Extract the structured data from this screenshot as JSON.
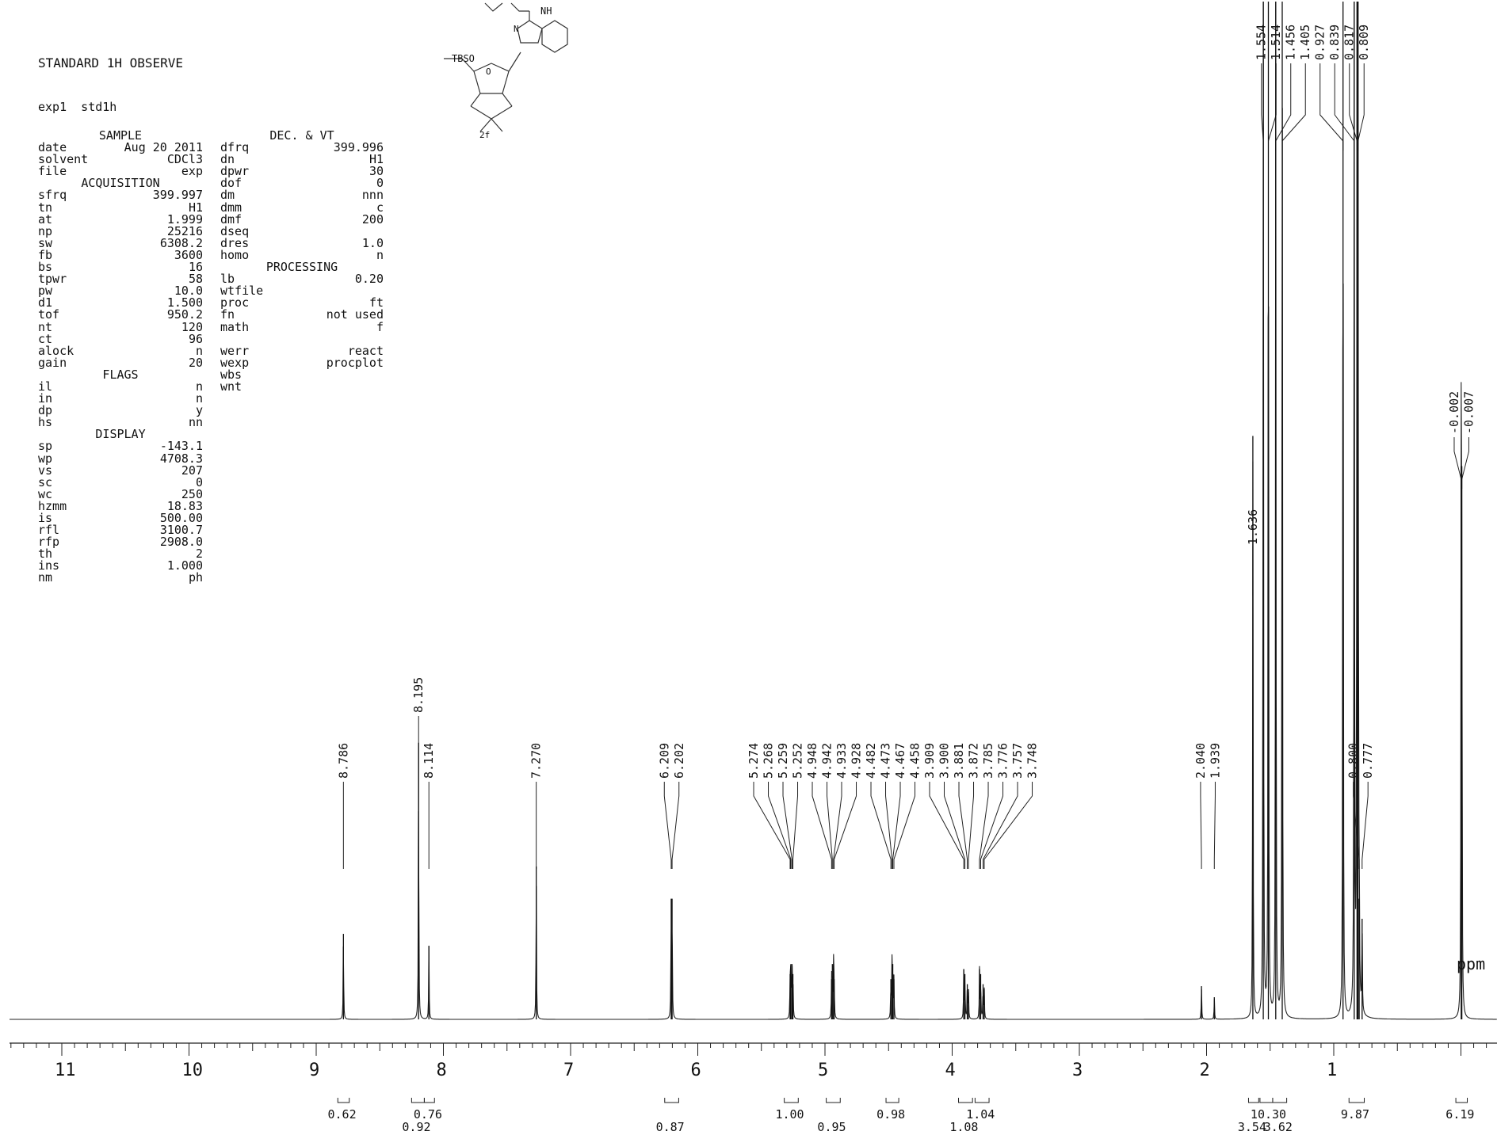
{
  "header": {
    "title": "STANDARD 1H OBSERVE",
    "exp": "exp1  std1h"
  },
  "params": {
    "col1": [
      {
        "type": "hdr",
        "text": "SAMPLE"
      },
      {
        "l": "date",
        "v": "Aug 20 2011"
      },
      {
        "l": "solvent",
        "v": "CDCl3"
      },
      {
        "l": "file",
        "v": "exp"
      },
      {
        "type": "hdr",
        "text": "ACQUISITION"
      },
      {
        "l": "sfrq",
        "v": "399.997"
      },
      {
        "l": "tn",
        "v": "H1"
      },
      {
        "l": "at",
        "v": "1.999"
      },
      {
        "l": "np",
        "v": "25216"
      },
      {
        "l": "sw",
        "v": "6308.2"
      },
      {
        "l": "fb",
        "v": "3600"
      },
      {
        "l": "bs",
        "v": "16"
      },
      {
        "l": "tpwr",
        "v": "58"
      },
      {
        "l": "pw",
        "v": "10.0"
      },
      {
        "l": "d1",
        "v": "1.500"
      },
      {
        "l": "tof",
        "v": "950.2"
      },
      {
        "l": "nt",
        "v": "120"
      },
      {
        "l": "ct",
        "v": "96"
      },
      {
        "l": "alock",
        "v": "n"
      },
      {
        "l": "gain",
        "v": "20"
      },
      {
        "type": "hdr",
        "text": "FLAGS"
      },
      {
        "l": "il",
        "v": "n"
      },
      {
        "l": "in",
        "v": "n"
      },
      {
        "l": "dp",
        "v": "y"
      },
      {
        "l": "hs",
        "v": "nn"
      },
      {
        "type": "hdr",
        "text": "DISPLAY"
      },
      {
        "l": "sp",
        "v": "-143.1"
      },
      {
        "l": "wp",
        "v": "4708.3"
      },
      {
        "l": "vs",
        "v": "207"
      },
      {
        "l": "sc",
        "v": "0"
      },
      {
        "l": "wc",
        "v": "250"
      },
      {
        "l": "hzmm",
        "v": "18.83"
      },
      {
        "l": "is",
        "v": "500.00"
      },
      {
        "l": "rfl",
        "v": "3100.7"
      },
      {
        "l": "rfp",
        "v": "2908.0"
      },
      {
        "l": "th",
        "v": "2"
      },
      {
        "l": "ins",
        "v": "1.000"
      },
      {
        "l": "nm",
        "v": "ph"
      }
    ],
    "col2": [
      {
        "type": "hdr",
        "text": "DEC. & VT"
      },
      {
        "l": "dfrq",
        "v": "399.996"
      },
      {
        "l": "dn",
        "v": "H1"
      },
      {
        "l": "dpwr",
        "v": "30"
      },
      {
        "l": "dof",
        "v": "0"
      },
      {
        "l": "dm",
        "v": "nnn"
      },
      {
        "l": "dmm",
        "v": "c"
      },
      {
        "l": "dmf",
        "v": "200"
      },
      {
        "l": "dseq",
        "v": ""
      },
      {
        "l": "dres",
        "v": "1.0"
      },
      {
        "l": "homo",
        "v": "n"
      },
      {
        "type": "hdr",
        "text": "PROCESSING"
      },
      {
        "l": "lb",
        "v": "0.20"
      },
      {
        "l": "wtfile",
        "v": ""
      },
      {
        "l": "proc",
        "v": "ft"
      },
      {
        "l": "fn",
        "v": "not used"
      },
      {
        "l": "math",
        "v": "f"
      },
      {
        "type": "blank"
      },
      {
        "l": "werr",
        "v": "react"
      },
      {
        "l": "wexp",
        "v": "procplot"
      },
      {
        "l": "wbs",
        "v": ""
      },
      {
        "l": "wnt",
        "v": ""
      }
    ]
  },
  "structure": {
    "label_tbs": "TBSO",
    "label_nh": "NH",
    "label_n": "N",
    "label_o": "O",
    "compound": "2f"
  },
  "chart_data": {
    "type": "line",
    "title": "",
    "xlabel": "ppm",
    "ylabel": "",
    "xlim": [
      11.4,
      -0.3
    ],
    "x_reversed": true,
    "xticks": [
      11,
      10,
      9,
      8,
      7,
      6,
      5,
      4,
      3,
      2,
      1
    ],
    "series": [
      {
        "peaks": [
          {
            "ppm": 8.786,
            "h": 0.085
          },
          {
            "ppm": 8.195,
            "h": 0.275
          },
          {
            "ppm": 8.114,
            "h": 0.073
          },
          {
            "ppm": 7.27,
            "h": 0.152
          },
          {
            "ppm": 6.209,
            "h": 0.12
          },
          {
            "ppm": 6.202,
            "h": 0.12
          },
          {
            "ppm": 5.274,
            "h": 0.045
          },
          {
            "ppm": 5.268,
            "h": 0.055
          },
          {
            "ppm": 5.259,
            "h": 0.055
          },
          {
            "ppm": 5.252,
            "h": 0.045
          },
          {
            "ppm": 4.948,
            "h": 0.04
          },
          {
            "ppm": 4.942,
            "h": 0.055
          },
          {
            "ppm": 4.933,
            "h": 0.055
          },
          {
            "ppm": 4.928,
            "h": 0.04
          },
          {
            "ppm": 4.482,
            "h": 0.04
          },
          {
            "ppm": 4.473,
            "h": 0.055
          },
          {
            "ppm": 4.467,
            "h": 0.055
          },
          {
            "ppm": 4.458,
            "h": 0.04
          },
          {
            "ppm": 3.909,
            "h": 0.05
          },
          {
            "ppm": 3.9,
            "h": 0.045
          },
          {
            "ppm": 3.881,
            "h": 0.035
          },
          {
            "ppm": 3.872,
            "h": 0.03
          },
          {
            "ppm": 3.785,
            "h": 0.05
          },
          {
            "ppm": 3.776,
            "h": 0.045
          },
          {
            "ppm": 3.757,
            "h": 0.035
          },
          {
            "ppm": 3.748,
            "h": 0.03
          },
          {
            "ppm": 2.04,
            "h": 0.033
          },
          {
            "ppm": 1.939,
            "h": 0.022
          },
          {
            "ppm": 1.636,
            "h": 0.58
          },
          {
            "ppm": 1.554,
            "h": 1.2
          },
          {
            "ppm": 1.514,
            "h": 1.2
          },
          {
            "ppm": 1.456,
            "h": 1.2
          },
          {
            "ppm": 1.405,
            "h": 1.2
          },
          {
            "ppm": 0.927,
            "h": 1.2
          },
          {
            "ppm": 0.839,
            "h": 1.2
          },
          {
            "ppm": 0.817,
            "h": 1.2
          },
          {
            "ppm": 0.809,
            "h": 1.2
          },
          {
            "ppm": 0.8,
            "h": 0.12
          },
          {
            "ppm": 0.777,
            "h": 0.1
          },
          {
            "ppm": -0.002,
            "h": 0.55
          },
          {
            "ppm": -0.007,
            "h": 0.55
          }
        ]
      }
    ],
    "peak_label_groups": [
      {
        "labels": [
          "1.554",
          "1.514",
          "1.456",
          "1.405",
          "0.927",
          "0.839",
          "0.817",
          "0.809"
        ],
        "peaks": [
          1.554,
          1.514,
          1.456,
          1.405,
          0.927,
          0.839,
          0.817,
          0.809
        ],
        "text_ppm": [
          1.554,
          1.514,
          1.456,
          1.405,
          0.927,
          0.839,
          0.817,
          0.809
        ],
        "y": "top"
      },
      {
        "labels": [
          "-0.002",
          "-0.007"
        ],
        "peaks": [
          -0.002,
          -0.007
        ],
        "text_ppm": [
          -0.002,
          -0.007
        ],
        "y": "mid-high"
      },
      {
        "labels": [
          "1.636"
        ],
        "peaks": [
          1.636
        ],
        "text_ppm": [
          1.636
        ],
        "y": "mid"
      },
      {
        "labels": [
          "8.786"
        ],
        "peaks": [
          8.786
        ],
        "text_ppm": [
          8.786
        ],
        "y": "low"
      },
      {
        "labels": [
          "8.195"
        ],
        "peaks": [
          8.195
        ],
        "text_ppm": [
          8.195
        ],
        "y": "low-high"
      },
      {
        "labels": [
          "8.114"
        ],
        "peaks": [
          8.114
        ],
        "text_ppm": [
          8.114
        ],
        "y": "low"
      },
      {
        "labels": [
          "7.270"
        ],
        "peaks": [
          7.27
        ],
        "text_ppm": [
          7.27
        ],
        "y": "low"
      },
      {
        "labels": [
          "6.209",
          "6.202"
        ],
        "peaks": [
          6.209,
          6.202
        ],
        "text_ppm": [
          6.209,
          6.202
        ],
        "y": "low"
      },
      {
        "labels": [
          "5.274",
          "5.268",
          "5.259",
          "5.252",
          "4.948",
          "4.942",
          "4.933",
          "4.928",
          "4.482",
          "4.473",
          "4.467",
          "4.458",
          "3.909",
          "3.900",
          "3.881",
          "3.872",
          "3.785",
          "3.776",
          "3.757",
          "3.748"
        ],
        "peaks": [
          5.274,
          5.268,
          5.259,
          5.252,
          4.948,
          4.942,
          4.933,
          4.928,
          4.482,
          4.473,
          4.467,
          4.458,
          3.909,
          3.9,
          3.881,
          3.872,
          3.785,
          3.776,
          3.757,
          3.748
        ],
        "y": "low"
      },
      {
        "labels": [
          "2.040",
          "1.939"
        ],
        "peaks": [
          2.04,
          1.939
        ],
        "y": "low"
      },
      {
        "labels": [
          "0.800",
          "0.777"
        ],
        "peaks": [
          0.8,
          0.777
        ],
        "y": "low"
      }
    ],
    "integrals": [
      {
        "from": 8.83,
        "to": 8.74,
        "value": "0.62",
        "row": 1
      },
      {
        "from": 8.25,
        "to": 8.15,
        "value": "0.92",
        "row": 2
      },
      {
        "from": 8.15,
        "to": 8.07,
        "value": "0.76",
        "row": 1
      },
      {
        "from": 6.26,
        "to": 6.15,
        "value": "0.87",
        "row": 2
      },
      {
        "from": 5.32,
        "to": 5.21,
        "value": "1.00",
        "row": 1
      },
      {
        "from": 4.99,
        "to": 4.88,
        "value": "0.95",
        "row": 2
      },
      {
        "from": 4.52,
        "to": 4.42,
        "value": "0.98",
        "row": 1
      },
      {
        "from": 3.95,
        "to": 3.84,
        "value": "1.08",
        "row": 2
      },
      {
        "from": 3.82,
        "to": 3.71,
        "value": "1.04",
        "row": 1
      },
      {
        "from": 1.67,
        "to": 1.59,
        "value": "3.54",
        "row": 2
      },
      {
        "from": 1.58,
        "to": 1.48,
        "value": "10.30",
        "row": 1
      },
      {
        "from": 1.48,
        "to": 1.37,
        "value": "3.62",
        "row": 2
      },
      {
        "from": 0.88,
        "to": 0.76,
        "value": "9.87",
        "row": 1
      },
      {
        "from": 0.04,
        "to": -0.05,
        "value": "6.19",
        "row": 1
      }
    ]
  }
}
